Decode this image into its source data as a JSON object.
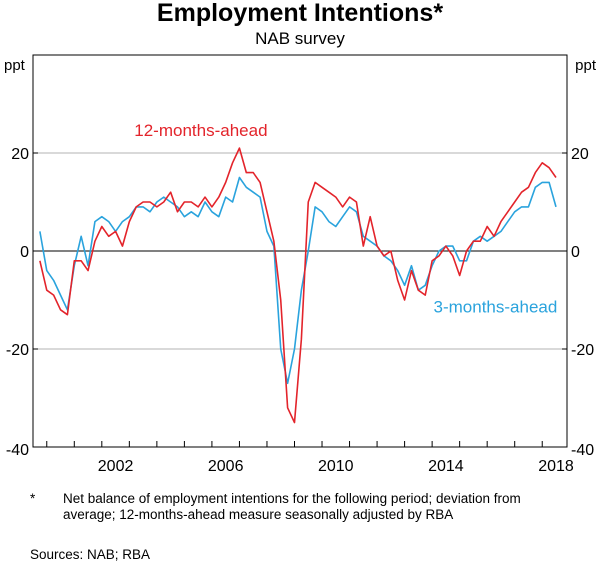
{
  "chart_data": {
    "type": "line",
    "title": "Employment Intentions*",
    "subtitle": "NAB survey",
    "ylabel_left": "ppt",
    "ylabel_right": "ppt",
    "ylim": [
      -40,
      40
    ],
    "xlim": [
      1999.5,
      2018.9
    ],
    "y_ticks": [
      20,
      0,
      -20,
      -40
    ],
    "y_tick_labels": [
      "20",
      "0",
      "-20",
      "-40"
    ],
    "x_ticks": [
      2002,
      2006,
      2010,
      2014,
      2018
    ],
    "x_tick_labels": [
      "2002",
      "2006",
      "2010",
      "2014",
      "2018"
    ],
    "grid": "horizontal",
    "series": [
      {
        "name": "12-months-ahead",
        "label": "12-months-ahead",
        "color": "#e3242b",
        "points": [
          [
            1999.75,
            -2
          ],
          [
            2000.0,
            -8
          ],
          [
            2000.25,
            -9
          ],
          [
            2000.5,
            -12
          ],
          [
            2000.75,
            -13
          ],
          [
            2001.0,
            -2
          ],
          [
            2001.25,
            -2
          ],
          [
            2001.5,
            -4
          ],
          [
            2001.75,
            2
          ],
          [
            2002.0,
            5
          ],
          [
            2002.25,
            3
          ],
          [
            2002.5,
            4
          ],
          [
            2002.75,
            1
          ],
          [
            2003.0,
            6
          ],
          [
            2003.25,
            9
          ],
          [
            2003.5,
            10
          ],
          [
            2003.75,
            10
          ],
          [
            2004.0,
            9
          ],
          [
            2004.25,
            10
          ],
          [
            2004.5,
            12
          ],
          [
            2004.75,
            8
          ],
          [
            2005.0,
            10
          ],
          [
            2005.25,
            10
          ],
          [
            2005.5,
            9
          ],
          [
            2005.75,
            11
          ],
          [
            2006.0,
            9
          ],
          [
            2006.25,
            11
          ],
          [
            2006.5,
            14
          ],
          [
            2006.75,
            18
          ],
          [
            2007.0,
            21
          ],
          [
            2007.25,
            16
          ],
          [
            2007.5,
            16
          ],
          [
            2007.75,
            14
          ],
          [
            2008.0,
            8
          ],
          [
            2008.25,
            2
          ],
          [
            2008.5,
            -10
          ],
          [
            2008.75,
            -32
          ],
          [
            2009.0,
            -35
          ],
          [
            2009.25,
            -18
          ],
          [
            2009.5,
            10
          ],
          [
            2009.75,
            14
          ],
          [
            2010.0,
            13
          ],
          [
            2010.25,
            12
          ],
          [
            2010.5,
            11
          ],
          [
            2010.75,
            9
          ],
          [
            2011.0,
            11
          ],
          [
            2011.25,
            10
          ],
          [
            2011.5,
            1
          ],
          [
            2011.75,
            7
          ],
          [
            2012.0,
            1
          ],
          [
            2012.25,
            -1
          ],
          [
            2012.5,
            0
          ],
          [
            2012.75,
            -6
          ],
          [
            2013.0,
            -10
          ],
          [
            2013.25,
            -4
          ],
          [
            2013.5,
            -8
          ],
          [
            2013.75,
            -9
          ],
          [
            2014.0,
            -2
          ],
          [
            2014.25,
            -1
          ],
          [
            2014.5,
            1
          ],
          [
            2014.75,
            -1
          ],
          [
            2015.0,
            -5
          ],
          [
            2015.25,
            0
          ],
          [
            2015.5,
            2
          ],
          [
            2015.75,
            2
          ],
          [
            2016.0,
            5
          ],
          [
            2016.25,
            3
          ],
          [
            2016.5,
            6
          ],
          [
            2016.75,
            8
          ],
          [
            2017.0,
            10
          ],
          [
            2017.25,
            12
          ],
          [
            2017.5,
            13
          ],
          [
            2017.75,
            16
          ],
          [
            2018.0,
            18
          ],
          [
            2018.25,
            17
          ],
          [
            2018.5,
            15
          ]
        ]
      },
      {
        "name": "3-months-ahead",
        "label": "3-months-ahead",
        "color": "#2aa3dd",
        "points": [
          [
            1999.75,
            4
          ],
          [
            2000.0,
            -4
          ],
          [
            2000.25,
            -6
          ],
          [
            2000.5,
            -9
          ],
          [
            2000.75,
            -12
          ],
          [
            2001.0,
            -3
          ],
          [
            2001.25,
            3
          ],
          [
            2001.5,
            -3
          ],
          [
            2001.75,
            6
          ],
          [
            2002.0,
            7
          ],
          [
            2002.25,
            6
          ],
          [
            2002.5,
            4
          ],
          [
            2002.75,
            6
          ],
          [
            2003.0,
            7
          ],
          [
            2003.25,
            9
          ],
          [
            2003.5,
            9
          ],
          [
            2003.75,
            8
          ],
          [
            2004.0,
            10
          ],
          [
            2004.25,
            11
          ],
          [
            2004.5,
            10
          ],
          [
            2004.75,
            9
          ],
          [
            2005.0,
            7
          ],
          [
            2005.25,
            8
          ],
          [
            2005.5,
            7
          ],
          [
            2005.75,
            10
          ],
          [
            2006.0,
            8
          ],
          [
            2006.25,
            7
          ],
          [
            2006.5,
            11
          ],
          [
            2006.75,
            10
          ],
          [
            2007.0,
            15
          ],
          [
            2007.25,
            13
          ],
          [
            2007.5,
            12
          ],
          [
            2007.75,
            11
          ],
          [
            2008.0,
            4
          ],
          [
            2008.25,
            1
          ],
          [
            2008.5,
            -20
          ],
          [
            2008.75,
            -27
          ],
          [
            2009.0,
            -20
          ],
          [
            2009.25,
            -8
          ],
          [
            2009.5,
            0
          ],
          [
            2009.75,
            9
          ],
          [
            2010.0,
            8
          ],
          [
            2010.25,
            6
          ],
          [
            2010.5,
            5
          ],
          [
            2010.75,
            7
          ],
          [
            2011.0,
            9
          ],
          [
            2011.25,
            8
          ],
          [
            2011.5,
            3
          ],
          [
            2011.75,
            2
          ],
          [
            2012.0,
            1
          ],
          [
            2012.25,
            -1
          ],
          [
            2012.5,
            -2
          ],
          [
            2012.75,
            -4
          ],
          [
            2013.0,
            -7
          ],
          [
            2013.25,
            -3
          ],
          [
            2013.5,
            -8
          ],
          [
            2013.75,
            -7
          ],
          [
            2014.0,
            -3
          ],
          [
            2014.25,
            0
          ],
          [
            2014.5,
            1
          ],
          [
            2014.75,
            1
          ],
          [
            2015.0,
            -2
          ],
          [
            2015.25,
            -2
          ],
          [
            2015.5,
            2
          ],
          [
            2015.75,
            3
          ],
          [
            2016.0,
            2
          ],
          [
            2016.25,
            3
          ],
          [
            2016.5,
            4
          ],
          [
            2016.75,
            6
          ],
          [
            2017.0,
            8
          ],
          [
            2017.25,
            9
          ],
          [
            2017.5,
            9
          ],
          [
            2017.75,
            13
          ],
          [
            2018.0,
            14
          ],
          [
            2018.25,
            14
          ],
          [
            2018.5,
            9
          ]
        ]
      }
    ],
    "annotations": [
      {
        "text": "12-months-ahead",
        "series": "12-months-ahead",
        "anchor": "above peak, near 2006",
        "x": 2005.6,
        "y": 23.5
      },
      {
        "text": "3-months-ahead",
        "series": "3-months-ahead",
        "anchor": "below line, near 2016",
        "x": 2016.3,
        "y": -12.5
      }
    ]
  },
  "footnote": {
    "marker": "*",
    "text": "Net balance of employment intentions for the following period; deviation from average; 12-months-ahead measure seasonally adjusted by RBA"
  },
  "sources": "Sources: NAB; RBA"
}
